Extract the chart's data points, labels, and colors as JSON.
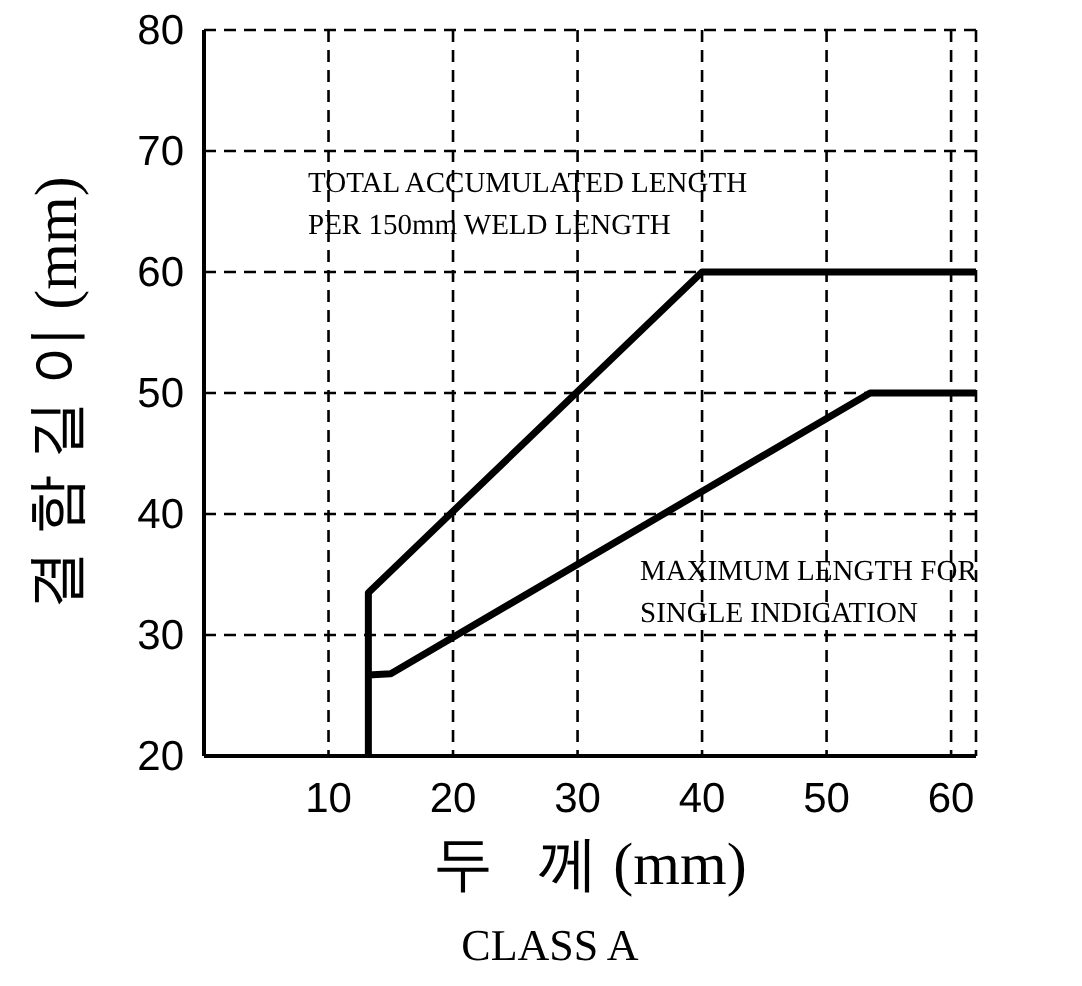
{
  "chart_data": {
    "type": "line",
    "title": "CLASS A",
    "xlabel": "두   께 (mm)",
    "ylabel": "결 함 길 이 (mm)",
    "xlim": [
      0,
      62
    ],
    "ylim": [
      20,
      80
    ],
    "xticks": [
      10,
      20,
      30,
      40,
      50,
      60
    ],
    "yticks": [
      20,
      30,
      40,
      50,
      60,
      70,
      80
    ],
    "grid": true,
    "marker": "none",
    "line_style": "solid",
    "series": [
      {
        "color": "#000000",
        "x": [
          13.2,
          13.2,
          40,
          62
        ],
        "values": [
          20,
          33.5,
          60,
          60
        ]
      },
      {
        "color": "#000000",
        "x": [
          13.2,
          15,
          53.5,
          62
        ],
        "values": [
          26.7,
          26.8,
          50,
          50
        ]
      }
    ],
    "annotations": [
      "TOTAL ACCUMULATED LENGTH\nPER 150mm WELD LENGTH",
      "MAXIMUM LENGTH FOR\nSINGLE INDICATION"
    ]
  }
}
